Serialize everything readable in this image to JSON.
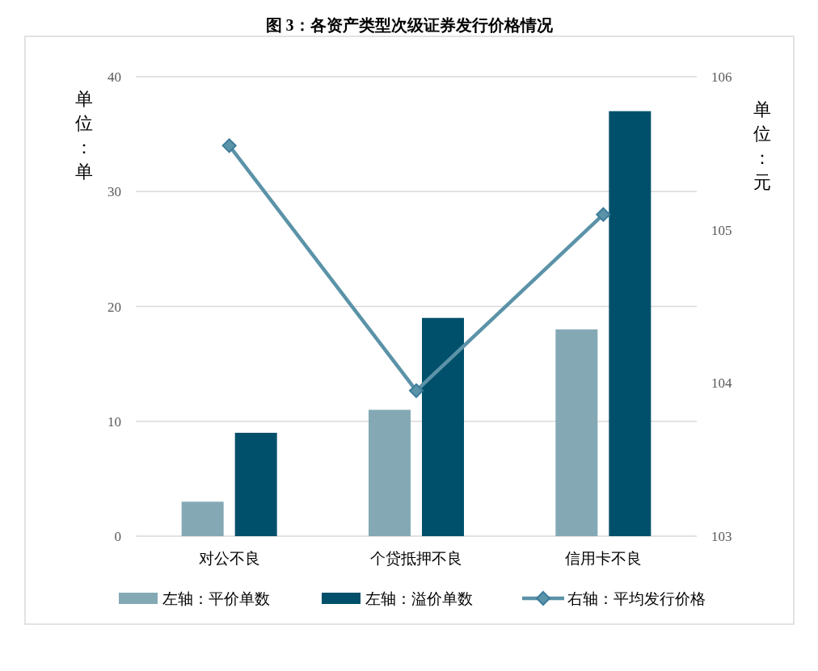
{
  "chart_data": {
    "type": "bar",
    "title": "图 3：各资产类型次级证券发行价格情况",
    "categories": [
      "对公不良",
      "个贷抵押不良",
      "信用卡不良"
    ],
    "series": [
      {
        "name": "左轴：平价单数",
        "color": "#84a9b5",
        "values": [
          3,
          11,
          18
        ]
      },
      {
        "name": "左轴：溢价单数",
        "color": "#00506b",
        "values": [
          9,
          19,
          37
        ]
      },
      {
        "name": "右轴：平均发行价格",
        "type": "line",
        "axis": "y2",
        "color": "#5b93a8",
        "values": [
          105.55,
          103.95,
          105.1
        ]
      }
    ],
    "ylabel": "单位：单",
    "y2label": "单位：元",
    "ylim": [
      0,
      40
    ],
    "yticks": [
      0,
      10,
      20,
      30,
      40
    ],
    "y2lim": [
      103,
      106
    ],
    "y2ticks": [
      103,
      104,
      105,
      106
    ],
    "grid": "y",
    "legend": "bottom",
    "marker": "diamond",
    "line_style": "solid"
  }
}
